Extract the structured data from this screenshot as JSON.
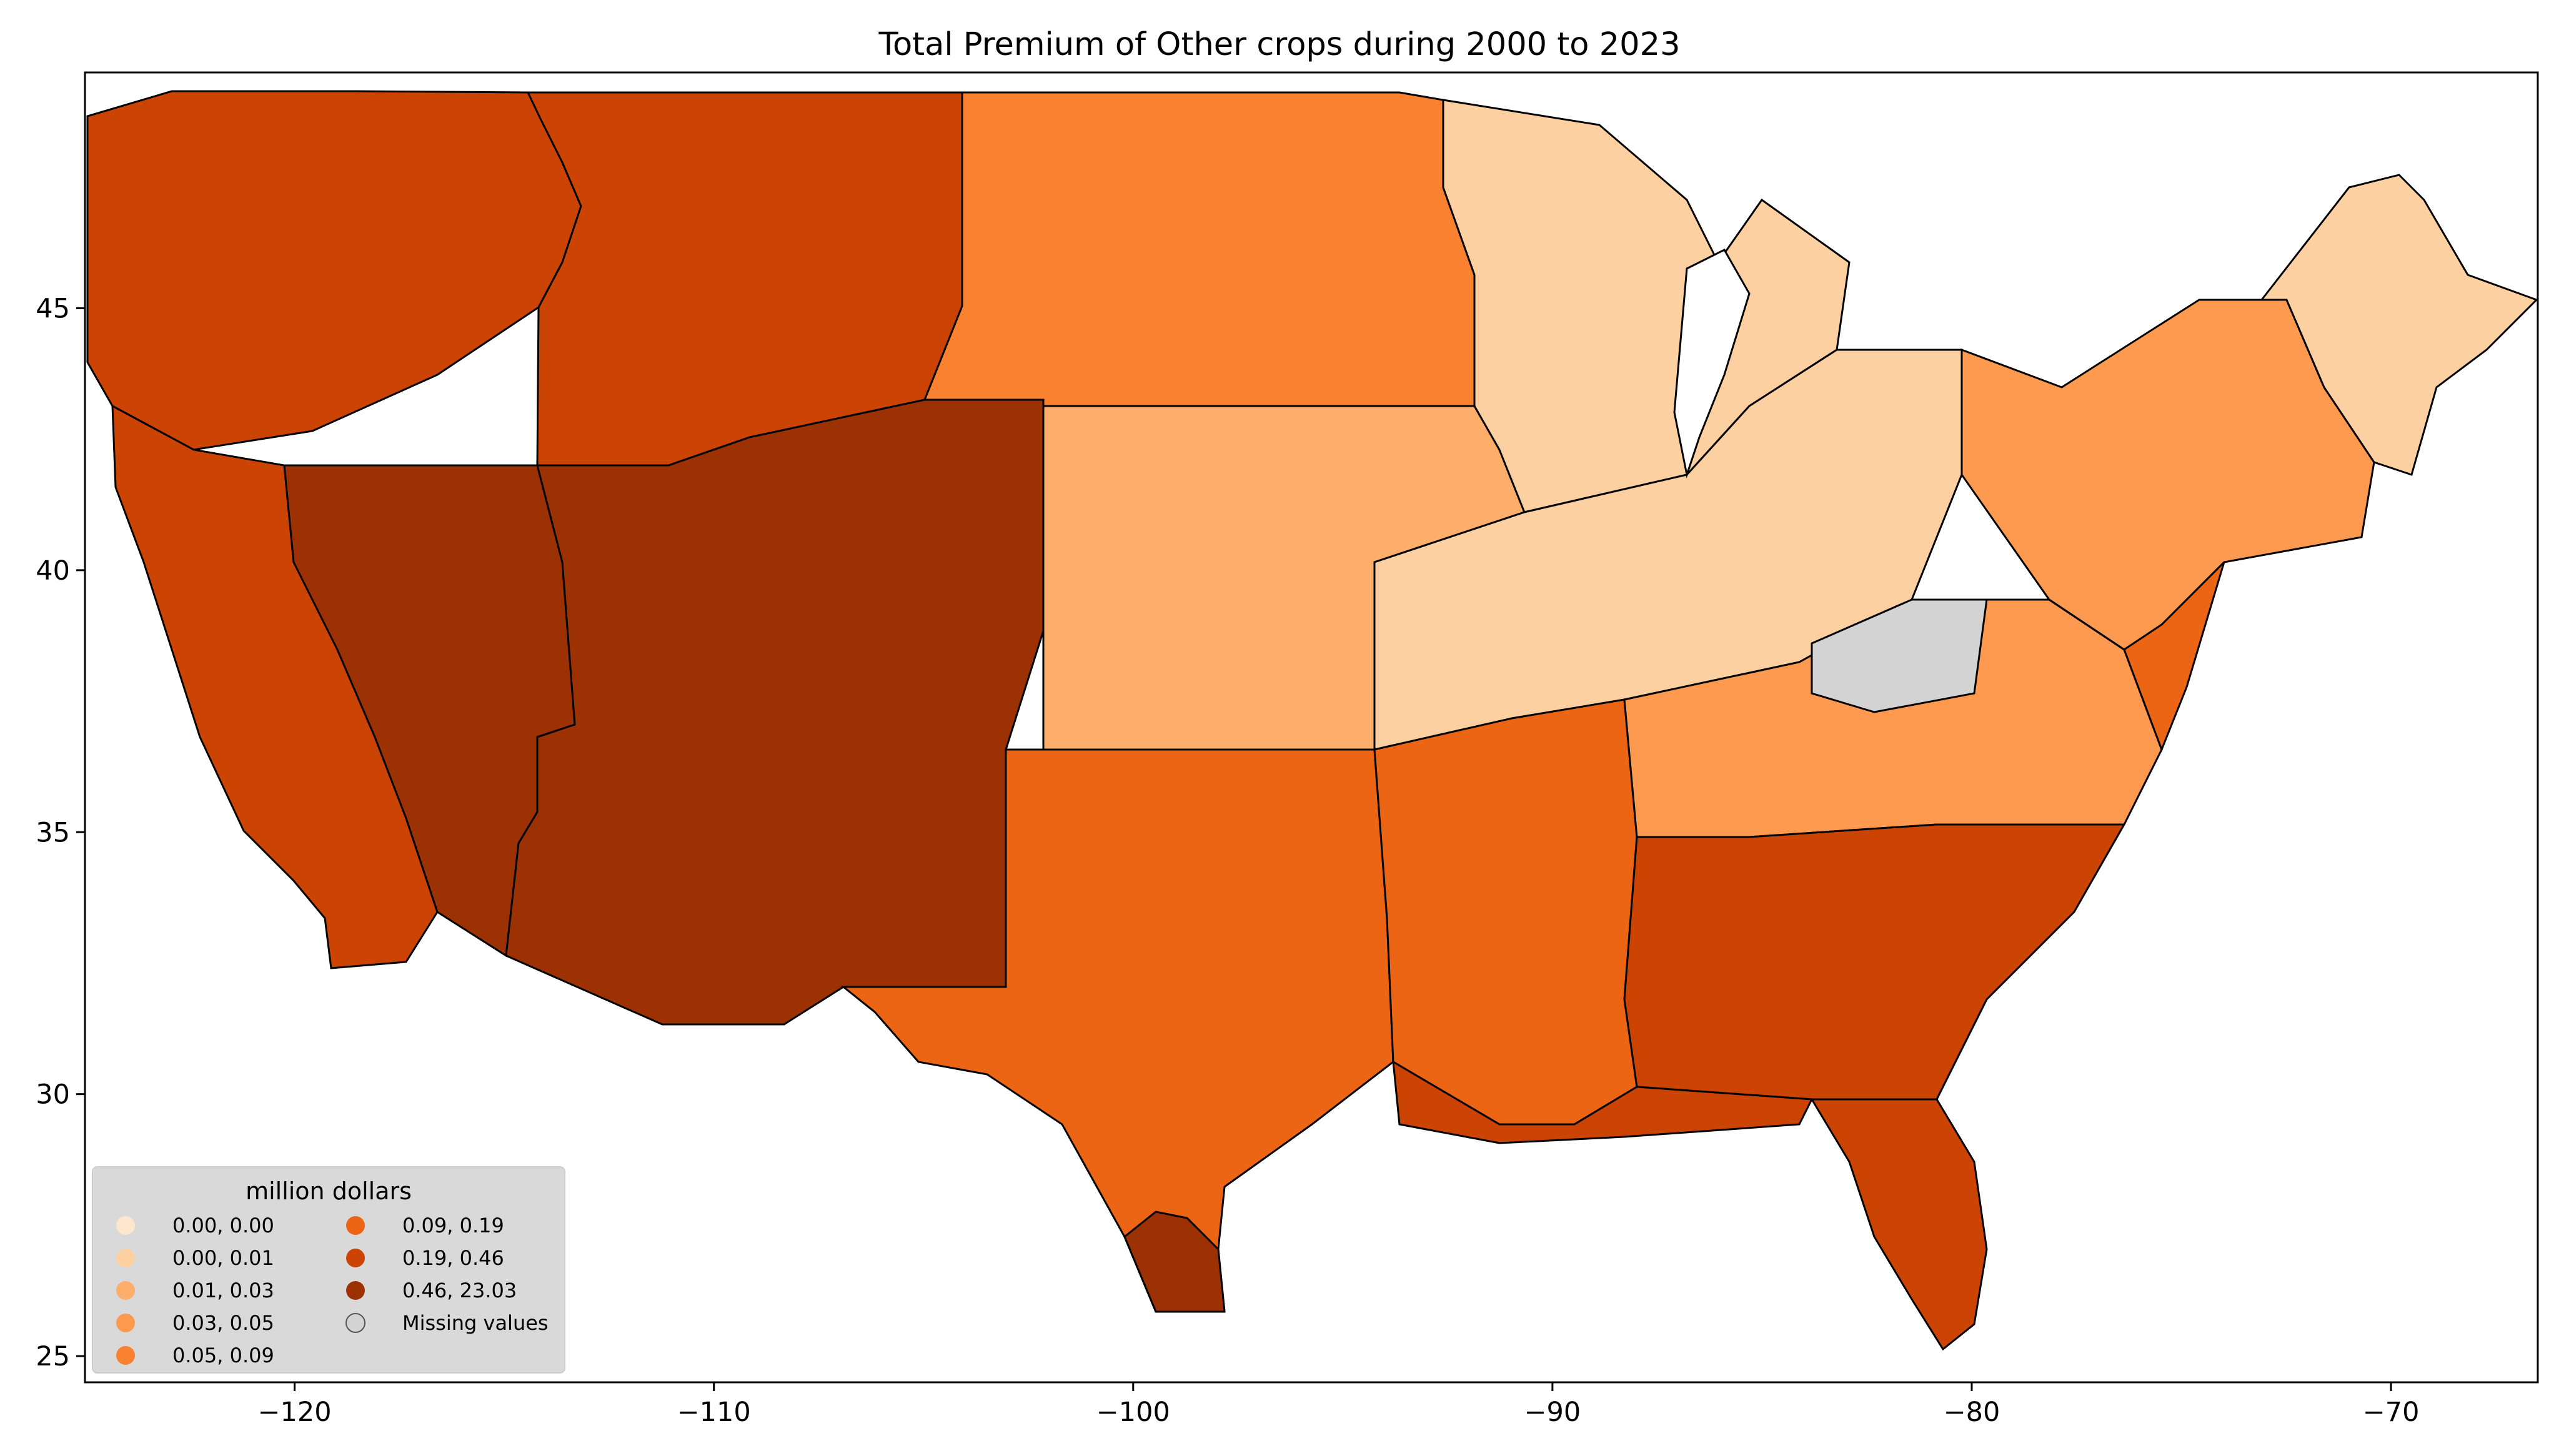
{
  "title": "Total  Premium of Other crops during 2000 to 2023",
  "x_ticks": [
    {
      "value": -120,
      "label": "−120"
    },
    {
      "value": -110,
      "label": "−110"
    },
    {
      "value": -100,
      "label": "−100"
    },
    {
      "value": -90,
      "label": "−90"
    },
    {
      "value": -80,
      "label": "−80"
    },
    {
      "value": -70,
      "label": "−70"
    }
  ],
  "y_ticks": [
    {
      "value": 45,
      "label": "45"
    },
    {
      "value": 40,
      "label": "40"
    },
    {
      "value": 35,
      "label": "35"
    },
    {
      "value": 30,
      "label": "30"
    },
    {
      "value": 25,
      "label": "25"
    }
  ],
  "legend": {
    "title": "million dollars",
    "items": [
      {
        "label": "0.00,  0.00",
        "color": "#fee6ce"
      },
      {
        "label": "0.00,  0.01",
        "color": "#fdd0a2"
      },
      {
        "label": "0.01,  0.03",
        "color": "#fdae6b"
      },
      {
        "label": "0.03,  0.05",
        "color": "#fd9a4f"
      },
      {
        "label": "0.05,  0.09",
        "color": "#f9812f"
      },
      {
        "label": "0.09,  0.19",
        "color": "#eb6515"
      },
      {
        "label": "0.19,  0.46",
        "color": "#cc4404"
      },
      {
        "label": "0.46, 23.03",
        "color": "#9c3204"
      },
      {
        "label": "Missing values",
        "color": "#d3d3d3"
      }
    ]
  },
  "map": {
    "lon_range": [
      -125,
      -66.5
    ],
    "lat_range": [
      24.5,
      49.5
    ],
    "border_color": "#000000",
    "missing_color": "#d3d3d3",
    "regions": [
      {
        "name": "Pacific Northwest",
        "class_index": 6
      },
      {
        "name": "California",
        "class_index": 6
      },
      {
        "name": "Great Basin",
        "class_index": 7
      },
      {
        "name": "Northern Rockies",
        "class_index": 6
      },
      {
        "name": "Southwest",
        "class_index": 7
      },
      {
        "name": "Northern Plains",
        "class_index": 4
      },
      {
        "name": "Central Plains",
        "class_index": 2
      },
      {
        "name": "Southern Plains",
        "class_index": 5
      },
      {
        "name": "Upper Midwest",
        "class_index": 1
      },
      {
        "name": "Corn Belt",
        "class_index": 1
      },
      {
        "name": "Delta",
        "class_index": 5
      },
      {
        "name": "Appalachia",
        "class_index": 3
      },
      {
        "name": "Southeast",
        "class_index": 6
      },
      {
        "name": "Florida",
        "class_index": 6
      },
      {
        "name": "Northeast",
        "class_index": 3
      },
      {
        "name": "New England",
        "class_index": 1
      },
      {
        "name": "Gulf Coast",
        "class_index": 6
      },
      {
        "name": "Kentucky",
        "class_index": 8
      },
      {
        "name": "South Texas",
        "class_index": 7
      },
      {
        "name": "Mid Atlantic",
        "class_index": 5
      }
    ]
  }
}
